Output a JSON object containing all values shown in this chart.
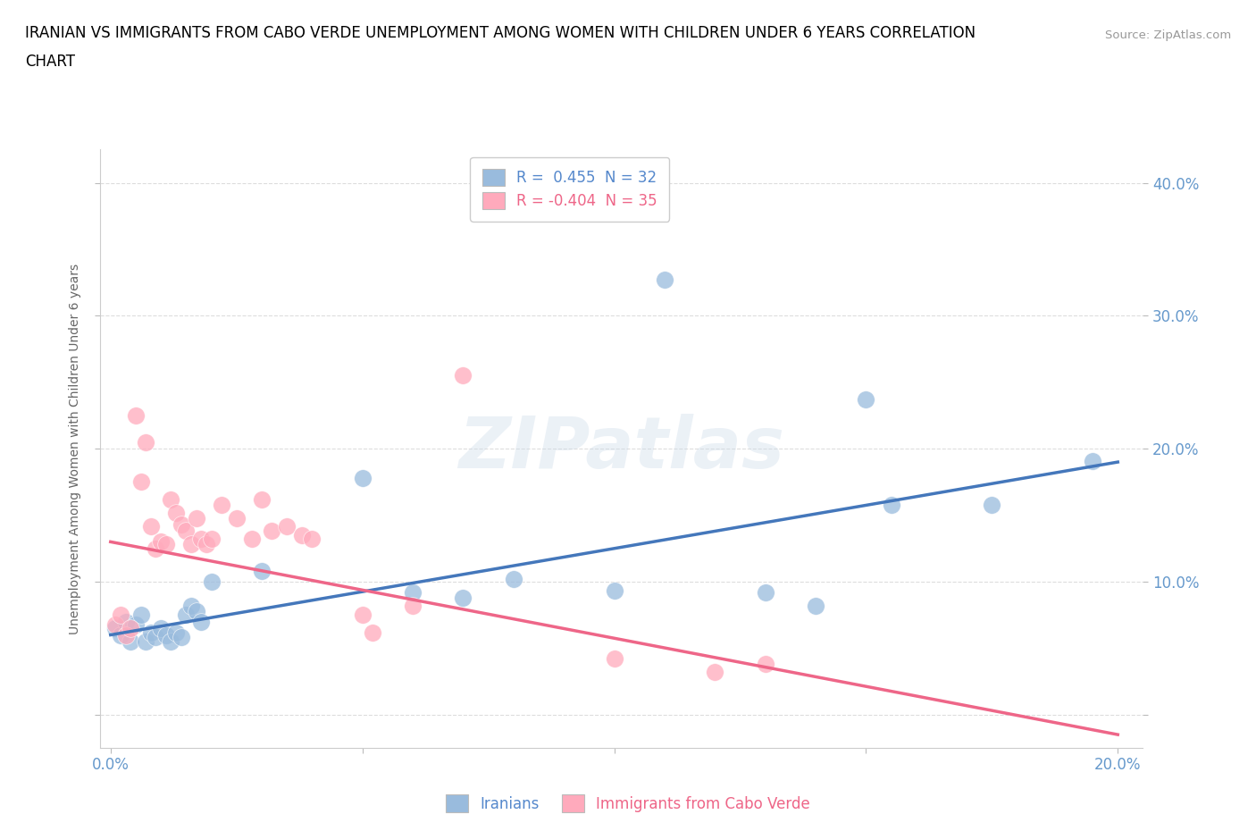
{
  "title_line1": "IRANIAN VS IMMIGRANTS FROM CABO VERDE UNEMPLOYMENT AMONG WOMEN WITH CHILDREN UNDER 6 YEARS CORRELATION",
  "title_line2": "CHART",
  "source": "Source: ZipAtlas.com",
  "ylabel_label": "Unemployment Among Women with Children Under 6 years",
  "x_min": -0.002,
  "x_max": 0.205,
  "y_min": -0.025,
  "y_max": 0.425,
  "iranians_R": "0.455",
  "iranians_N": "32",
  "cabo_verde_R": "-0.404",
  "cabo_verde_N": "35",
  "blue_color": "#99BBDD",
  "pink_color": "#FFAABC",
  "blue_line_color": "#4477BB",
  "pink_line_color": "#EE6688",
  "watermark": "ZIPatlas",
  "iran_line_x0": 0.0,
  "iran_line_y0": 0.06,
  "iran_line_x1": 0.2,
  "iran_line_y1": 0.19,
  "cv_line_x0": 0.0,
  "cv_line_y0": 0.13,
  "cv_line_x1": 0.2,
  "cv_line_y1": -0.015,
  "iranians_x": [
    0.001,
    0.002,
    0.003,
    0.004,
    0.005,
    0.006,
    0.007,
    0.008,
    0.009,
    0.01,
    0.011,
    0.012,
    0.013,
    0.014,
    0.015,
    0.016,
    0.017,
    0.018,
    0.02,
    0.03,
    0.05,
    0.06,
    0.07,
    0.08,
    0.1,
    0.11,
    0.13,
    0.14,
    0.15,
    0.155,
    0.175,
    0.195
  ],
  "iranians_y": [
    0.065,
    0.06,
    0.07,
    0.055,
    0.068,
    0.075,
    0.055,
    0.062,
    0.058,
    0.065,
    0.06,
    0.055,
    0.062,
    0.058,
    0.075,
    0.082,
    0.078,
    0.07,
    0.1,
    0.108,
    0.178,
    0.092,
    0.088,
    0.102,
    0.093,
    0.327,
    0.092,
    0.082,
    0.237,
    0.158,
    0.158,
    0.191
  ],
  "cabo_verde_x": [
    0.001,
    0.002,
    0.003,
    0.004,
    0.005,
    0.006,
    0.007,
    0.008,
    0.009,
    0.01,
    0.011,
    0.012,
    0.013,
    0.014,
    0.015,
    0.016,
    0.017,
    0.018,
    0.019,
    0.02,
    0.022,
    0.025,
    0.028,
    0.03,
    0.032,
    0.035,
    0.038,
    0.04,
    0.05,
    0.052,
    0.06,
    0.07,
    0.1,
    0.12,
    0.13
  ],
  "cabo_verde_y": [
    0.068,
    0.075,
    0.06,
    0.065,
    0.225,
    0.175,
    0.205,
    0.142,
    0.125,
    0.13,
    0.128,
    0.162,
    0.152,
    0.143,
    0.138,
    0.128,
    0.148,
    0.132,
    0.128,
    0.132,
    0.158,
    0.148,
    0.132,
    0.162,
    0.138,
    0.142,
    0.135,
    0.132,
    0.075,
    0.062,
    0.082,
    0.255,
    0.042,
    0.032,
    0.038
  ]
}
